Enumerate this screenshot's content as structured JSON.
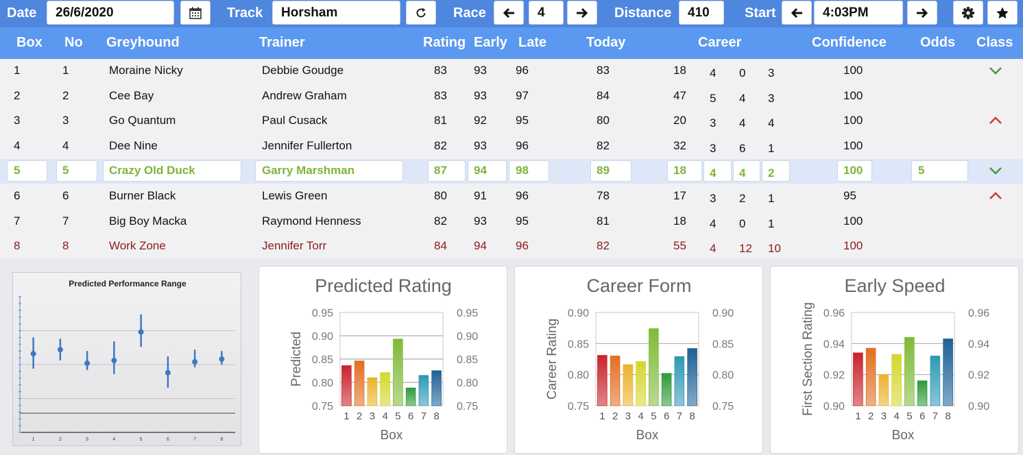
{
  "toolbar": {
    "date_label": "Date",
    "date_value": "26/6/2020",
    "calendar_icon": "calendar-icon",
    "track_label": "Track",
    "track_value": "Horsham",
    "refresh_icon": "refresh-icon",
    "race_label": "Race",
    "race_value": "4",
    "distance_label": "Distance",
    "distance_value": "410",
    "start_label": "Start",
    "start_value": "4:03PM",
    "settings_icon": "gear-icon",
    "favorite_icon": "star-icon"
  },
  "table": {
    "headers": {
      "box": "Box",
      "no": "No",
      "greyhound": "Greyhound",
      "trainer": "Trainer",
      "rating": "Rating",
      "early": "Early",
      "late": "Late",
      "today": "Today",
      "career": "Career",
      "confidence": "Confidence",
      "odds": "Odds",
      "class": "Class"
    },
    "rows": [
      {
        "box": "1",
        "no": "1",
        "greyhound": "Moraine Nicky",
        "trainer": "Debbie Goudge",
        "rating": "83",
        "early": "93",
        "late": "96",
        "today": "83",
        "c1": "18",
        "c2": "4",
        "c3": "0",
        "c4": "3",
        "confidence": "100",
        "odds": "",
        "class": "down"
      },
      {
        "box": "2",
        "no": "2",
        "greyhound": "Cee Bay",
        "trainer": "Andrew Graham",
        "rating": "83",
        "early": "93",
        "late": "97",
        "today": "84",
        "c1": "47",
        "c2": "5",
        "c3": "4",
        "c4": "3",
        "confidence": "100",
        "odds": "",
        "class": ""
      },
      {
        "box": "3",
        "no": "3",
        "greyhound": "Go Quantum",
        "trainer": "Paul Cusack",
        "rating": "81",
        "early": "92",
        "late": "95",
        "today": "80",
        "c1": "20",
        "c2": "3",
        "c3": "4",
        "c4": "4",
        "confidence": "100",
        "odds": "",
        "class": "up"
      },
      {
        "box": "4",
        "no": "4",
        "greyhound": "Dee Nine",
        "trainer": "Jennifer Fullerton",
        "rating": "82",
        "early": "93",
        "late": "96",
        "today": "82",
        "c1": "32",
        "c2": "3",
        "c3": "6",
        "c4": "1",
        "confidence": "100",
        "odds": "",
        "class": ""
      },
      {
        "box": "5",
        "no": "5",
        "greyhound": "Crazy Old Duck",
        "trainer": "Garry Marshman",
        "rating": "87",
        "early": "94",
        "late": "98",
        "today": "89",
        "c1": "18",
        "c2": "4",
        "c3": "4",
        "c4": "2",
        "confidence": "100",
        "odds": "5",
        "class": "down"
      },
      {
        "box": "6",
        "no": "6",
        "greyhound": "Burner Black",
        "trainer": "Lewis Green",
        "rating": "80",
        "early": "91",
        "late": "96",
        "today": "78",
        "c1": "17",
        "c2": "3",
        "c3": "2",
        "c4": "1",
        "confidence": "95",
        "odds": "",
        "class": "up"
      },
      {
        "box": "7",
        "no": "7",
        "greyhound": "Big Boy Macka",
        "trainer": "Raymond Henness",
        "rating": "82",
        "early": "93",
        "late": "95",
        "today": "81",
        "c1": "18",
        "c2": "4",
        "c3": "0",
        "c4": "1",
        "confidence": "100",
        "odds": "",
        "class": ""
      },
      {
        "box": "8",
        "no": "8",
        "greyhound": "Work Zone",
        "trainer": "Jennifer Torr",
        "rating": "84",
        "early": "94",
        "late": "96",
        "today": "82",
        "c1": "55",
        "c2": "4",
        "c3": "12",
        "c4": "10",
        "confidence": "100",
        "odds": "",
        "class": ""
      }
    ],
    "selected_row": 4,
    "highlight_row": 7
  },
  "colors": {
    "toolbar_bg": "#4f86de",
    "header_bg": "#5b98ef",
    "selected_text": "#7fb43a",
    "highlight_text": "#8a1a1a",
    "class_down": "#4e9a33",
    "class_up": "#d43a3a",
    "bars": [
      "#c8232b",
      "#e26e22",
      "#ebb22c",
      "#d3d72e",
      "#7fba38",
      "#2f9a3c",
      "#2d9ab4",
      "#1f6196"
    ]
  },
  "chart_data": [
    {
      "type": "scatter",
      "title": "Predicted Performance Range",
      "categories": [
        "1",
        "2",
        "3",
        "4",
        "5",
        "6",
        "7",
        "8"
      ],
      "ylim": [
        0,
        1
      ],
      "series": [
        {
          "values": [
            0.58,
            0.61,
            0.51,
            0.53,
            0.74,
            0.44,
            0.52,
            0.54
          ],
          "low": [
            0.47,
            0.53,
            0.46,
            0.43,
            0.63,
            0.33,
            0.48,
            0.5
          ],
          "high": [
            0.7,
            0.69,
            0.6,
            0.67,
            0.87,
            0.56,
            0.61,
            0.6
          ]
        }
      ],
      "xlabel": "",
      "ylabel": "",
      "grid": true
    },
    {
      "type": "bar",
      "title": "Predicted Rating",
      "categories": [
        "1",
        "2",
        "3",
        "4",
        "5",
        "6",
        "7",
        "8"
      ],
      "values": [
        0.836,
        0.846,
        0.81,
        0.821,
        0.893,
        0.788,
        0.815,
        0.825
      ],
      "xlabel": "Box",
      "ylabel": "Predicted",
      "ylim": [
        0.75,
        0.95
      ],
      "ticks": [
        "0.75",
        "0.80",
        "0.85",
        "0.90",
        "0.95"
      ],
      "gridlines": [
        0.8,
        0.85,
        0.9
      ]
    },
    {
      "type": "bar",
      "title": "Career Form",
      "categories": [
        "1",
        "2",
        "3",
        "4",
        "5",
        "6",
        "7",
        "8"
      ],
      "values": [
        0.831,
        0.83,
        0.816,
        0.821,
        0.874,
        0.802,
        0.829,
        0.842
      ],
      "xlabel": "Box",
      "ylabel": "Career Rating",
      "ylim": [
        0.75,
        0.9
      ],
      "ticks": [
        "0.75",
        "0.80",
        "0.85",
        "0.90"
      ],
      "gridlines": [
        0.8,
        0.85
      ]
    },
    {
      "type": "bar",
      "title": "Early Speed",
      "categories": [
        "1",
        "2",
        "3",
        "4",
        "5",
        "6",
        "7",
        "8"
      ],
      "values": [
        0.934,
        0.937,
        0.92,
        0.933,
        0.944,
        0.916,
        0.932,
        0.943
      ],
      "xlabel": "Box",
      "ylabel": "First Section Rating",
      "ylim": [
        0.9,
        0.96
      ],
      "ticks": [
        "0.90",
        "0.92",
        "0.94",
        "0.96"
      ],
      "gridlines": [
        0.92,
        0.94
      ]
    }
  ]
}
